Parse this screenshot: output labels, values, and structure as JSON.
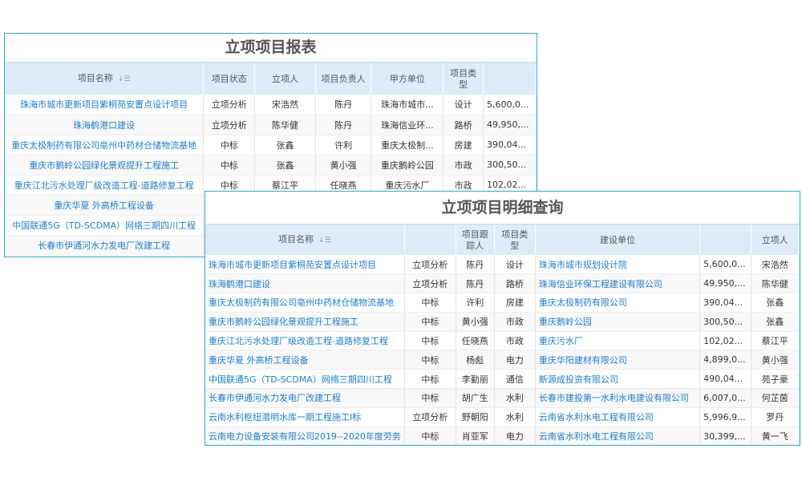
{
  "report": {
    "title": "立项项目报表",
    "headers": [
      "项目名称",
      "项目状态",
      "立项人",
      "项目负责人",
      "甲方单位",
      "项目类型",
      ""
    ],
    "rows": [
      [
        "珠海市城市更新项目紫桐苑安置点设计项目",
        "立项分析",
        "宋浩然",
        "陈丹",
        "珠海市城市...",
        "设计",
        "5,600,0..."
      ],
      [
        "珠海鹤港口建设",
        "立项分析",
        "陈华健",
        "陈丹",
        "珠海信业环...",
        "路桥",
        "49,950,..."
      ],
      [
        "重庆太极制药有限公司亳州中药材仓储物流基地",
        "中标",
        "张鑫",
        "许利",
        "重庆太极制...",
        "房建",
        "390,04..."
      ],
      [
        "重庆市鹅岭公园绿化景观提升工程施工",
        "中标",
        "张鑫",
        "黄小强",
        "重庆鹅岭公园",
        "市政",
        "300,50..."
      ],
      [
        "重庆江北污水处理厂级改造工程-道路修复工程",
        "中标",
        "蔡江平",
        "任晓燕",
        "重庆污水厂",
        "市政",
        "102,02..."
      ],
      [
        "重庆华夏 外高桥工程设备",
        "",
        "",
        "",
        "",
        "",
        ""
      ],
      [
        "中国联通5G（TD-SCDMA）网络三期四川工程",
        "",
        "",
        "",
        "",
        "",
        ""
      ],
      [
        "长春市伊通河水力发电厂改建工程",
        "",
        "",
        "",
        "",
        "",
        ""
      ]
    ]
  },
  "detail": {
    "title": "立项项目明细查询",
    "headers": [
      "项目名称",
      "",
      "项目跟踪人",
      "项目类型",
      "建设单位",
      "",
      "立项人"
    ],
    "rows": [
      [
        "珠海市城市更新项目紫桐苑安置点设计项目",
        "立项分析",
        "陈丹",
        "设计",
        "珠海市城市规划设计院",
        "5,600,0...",
        "宋浩然"
      ],
      [
        "珠海鹤港口建设",
        "立项分析",
        "陈丹",
        "路桥",
        "珠海信业环保工程建设有限公司",
        "49,950,...",
        "陈华健"
      ],
      [
        "重庆太极制药有限公司亳州中药材仓储物流基地",
        "中标",
        "许利",
        "房建",
        "重庆太极制药有限公司",
        "390,04...",
        "张鑫"
      ],
      [
        "重庆市鹅岭公园绿化景观提升工程施工",
        "中标",
        "黄小强",
        "市政",
        "重庆鹅岭公园",
        "300,50...",
        "张鑫"
      ],
      [
        "重庆江北污水处理厂级改造工程-道路修复工程",
        "中标",
        "任晓燕",
        "市政",
        "重庆污水厂",
        "102,02...",
        "蔡江平"
      ],
      [
        "重庆华夏 外高桥工程设备",
        "中标",
        "杨彪",
        "电力",
        "重庆华阳建材有限公司",
        "4,899,0...",
        "黄小强"
      ],
      [
        "中国联通5G（TD-SCDMA）网络三期四川工程",
        "中标",
        "李勤丽",
        "通信",
        "新源成投资有限公司",
        "490,04...",
        "苑子豪"
      ],
      [
        "长春市伊通河水力发电厂改建工程",
        "中标",
        "胡广生",
        "水利",
        "长春市建投第一水利水电建设有限公司",
        "6,007,0...",
        "何芷茵"
      ],
      [
        "云南水利枢纽潜明水库一期工程施工I标",
        "立项分析",
        "野朝阳",
        "水利",
        "云南省水利水电工程有限公司",
        "5,996,9...",
        "罗丹"
      ],
      [
        "云南电力设备安装有限公司2019--2020年度劳务",
        "中标",
        "肖亚军",
        "电力",
        "云南省水利水电工程有限公司",
        "30,399,...",
        "黄一飞"
      ]
    ]
  },
  "icons": {
    "sort": "sort-icon"
  },
  "colors": {
    "link": "#1a7fd4",
    "border": "#2aa8e0",
    "header_bg": "#deecfa"
  }
}
